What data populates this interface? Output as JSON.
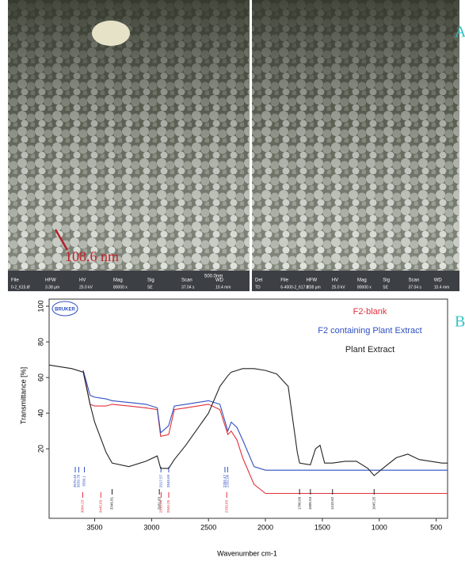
{
  "panel_a": {
    "label": "A",
    "annotation": "108.6 nm",
    "scale_bar": "500.0nm",
    "info_bars": [
      {
        "headers": [
          "File",
          "HFW",
          "HV",
          "Mag",
          "Sig",
          "Scan",
          "WD"
        ],
        "values": [
          "0-2_615.tif",
          "3.38 µm",
          "25.0 kV",
          "80000 x",
          "SE",
          "37.04 s",
          "10.4 mm"
        ]
      },
      {
        "headers": [
          "Det",
          "File",
          "HFW",
          "HV",
          "Mag",
          "Sig",
          "Scan",
          "WD"
        ],
        "values": [
          "TD",
          "6-4000-2_617.tif",
          "3.38 µm",
          "25.0 kV",
          "80000 x",
          "SE",
          "37.04 s",
          "10.4 mm"
        ]
      }
    ]
  },
  "chart_data": {
    "type": "line",
    "panel_label": "B",
    "logo_text": "BRUKER",
    "x_label": "Wavenumber cm-1",
    "y_label": "Transmittance [%]",
    "xlim": [
      3900,
      400
    ],
    "ylim": [
      -19,
      104
    ],
    "xticks": [
      3500,
      3000,
      2500,
      2000,
      1500,
      1000,
      500
    ],
    "yticks": [
      20,
      40,
      60,
      80,
      100
    ],
    "x": [
      3900,
      3700,
      3600,
      3540,
      3500,
      3400,
      3347,
      3200,
      3050,
      2950,
      2920,
      2850,
      2800,
      2700,
      2500,
      2400,
      2330,
      2300,
      2250,
      2200,
      2100,
      2000,
      1900,
      1800,
      1720,
      1700,
      1605,
      1560,
      1520,
      1480,
      1411,
      1300,
      1200,
      1100,
      1045,
      950,
      850,
      750,
      650,
      550,
      450,
      400
    ],
    "series": [
      {
        "name": "F2-blank",
        "color": "#e0303a",
        "values": [
          null,
          null,
          64,
          45,
          44,
          44,
          45,
          44,
          43,
          42,
          27,
          28,
          42,
          43,
          45,
          42,
          28,
          30,
          25,
          15,
          0,
          -5,
          -5,
          -5,
          -5,
          -5,
          -5,
          -5,
          -5,
          -5,
          -5,
          -5,
          -5,
          -5,
          -5,
          -5,
          -5,
          -5,
          -5,
          -5,
          -5,
          -5
        ],
        "peaks": [
          3604.23,
          3445.69,
          2916.06,
          2849.25,
          2339.83
        ]
      },
      {
        "name": "F2 containing Plant Extract",
        "color": "#2f4fc0",
        "values": [
          null,
          null,
          64,
          50,
          49,
          48,
          47,
          46,
          45,
          43,
          29,
          33,
          44,
          45,
          47,
          45,
          30,
          35,
          32,
          25,
          10,
          8,
          8,
          8,
          8,
          8,
          8,
          8,
          8,
          8,
          8,
          8,
          8,
          8,
          8,
          8,
          8,
          8,
          8,
          8,
          8,
          8
        ],
        "peaks": [
          3670.46,
          3639.78,
          3590.1,
          2917.57,
          2849.69,
          2355.47,
          {
            "value": 2332,
            "label": "2332.00"
          }
        ]
      },
      {
        "name": "Plant Extract",
        "color": "#222222",
        "values": [
          67,
          65,
          63,
          45,
          35,
          18,
          12,
          10,
          13,
          16,
          9,
          9,
          14,
          22,
          40,
          55,
          61,
          63,
          64,
          65,
          65,
          64,
          62,
          55,
          18,
          12,
          11,
          20,
          22,
          12,
          12,
          13,
          13,
          9,
          5,
          10,
          15,
          17,
          14,
          13,
          12,
          12
        ],
        "peaks": [
          3346.81,
          2931.83,
          1700.09,
          1605.04,
          1410.62,
          1045.25
        ]
      }
    ]
  }
}
